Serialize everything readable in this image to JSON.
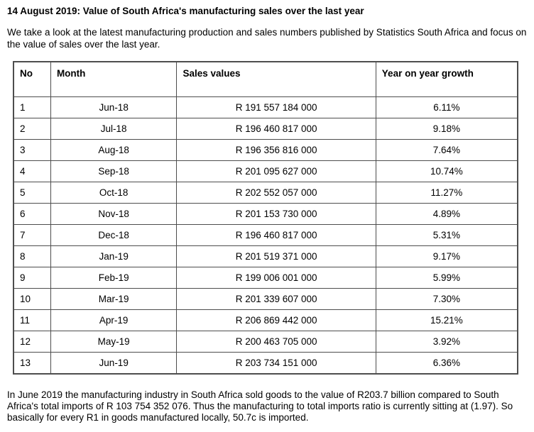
{
  "document": {
    "title": "14 August 2019: Value of South Africa's manufacturing sales over the last year",
    "intro": "We take a look at the latest manufacturing production and sales numbers published by Statistics South Africa and focus on the value of sales over the last year.",
    "closing": "In June 2019 the manufacturing industry in South Africa sold goods to the value of R203.7 billion compared to South Africa's total imports of R 103 754 352 076. Thus the manufacturing to total imports ratio is currently sitting at (1.97). So basically for every R1 in goods manufactured locally, 50.7c is imported."
  },
  "table": {
    "headers": [
      "No",
      "Month",
      "Sales values",
      "Year on year growth"
    ],
    "rows": [
      [
        "1",
        "Jun-18",
        "R 191 557 184 000",
        "6.11%"
      ],
      [
        "2",
        "Jul-18",
        "R 196 460 817 000",
        "9.18%"
      ],
      [
        "3",
        "Aug-18",
        "R 196 356 816 000",
        "7.64%"
      ],
      [
        "4",
        "Sep-18",
        "R 201 095 627 000",
        "10.74%"
      ],
      [
        "5",
        "Oct-18",
        "R 202 552 057 000",
        "11.27%"
      ],
      [
        "6",
        "Nov-18",
        "R 201 153 730 000",
        "4.89%"
      ],
      [
        "7",
        "Dec-18",
        "R 196 460 817 000",
        "5.31%"
      ],
      [
        "8",
        "Jan-19",
        "R 201 519 371 000",
        "9.17%"
      ],
      [
        "9",
        "Feb-19",
        "R 199 006 001 000",
        "5.99%"
      ],
      [
        "10",
        "Mar-19",
        "R 201 339 607 000",
        "7.30%"
      ],
      [
        "11",
        "Apr-19",
        "R 206 869 442 000",
        "15.21%"
      ],
      [
        "12",
        "May-19",
        "R 200 463 705 000",
        "3.92%"
      ],
      [
        "13",
        "Jun-19",
        "R 203 734 151 000",
        "6.36%"
      ]
    ]
  }
}
